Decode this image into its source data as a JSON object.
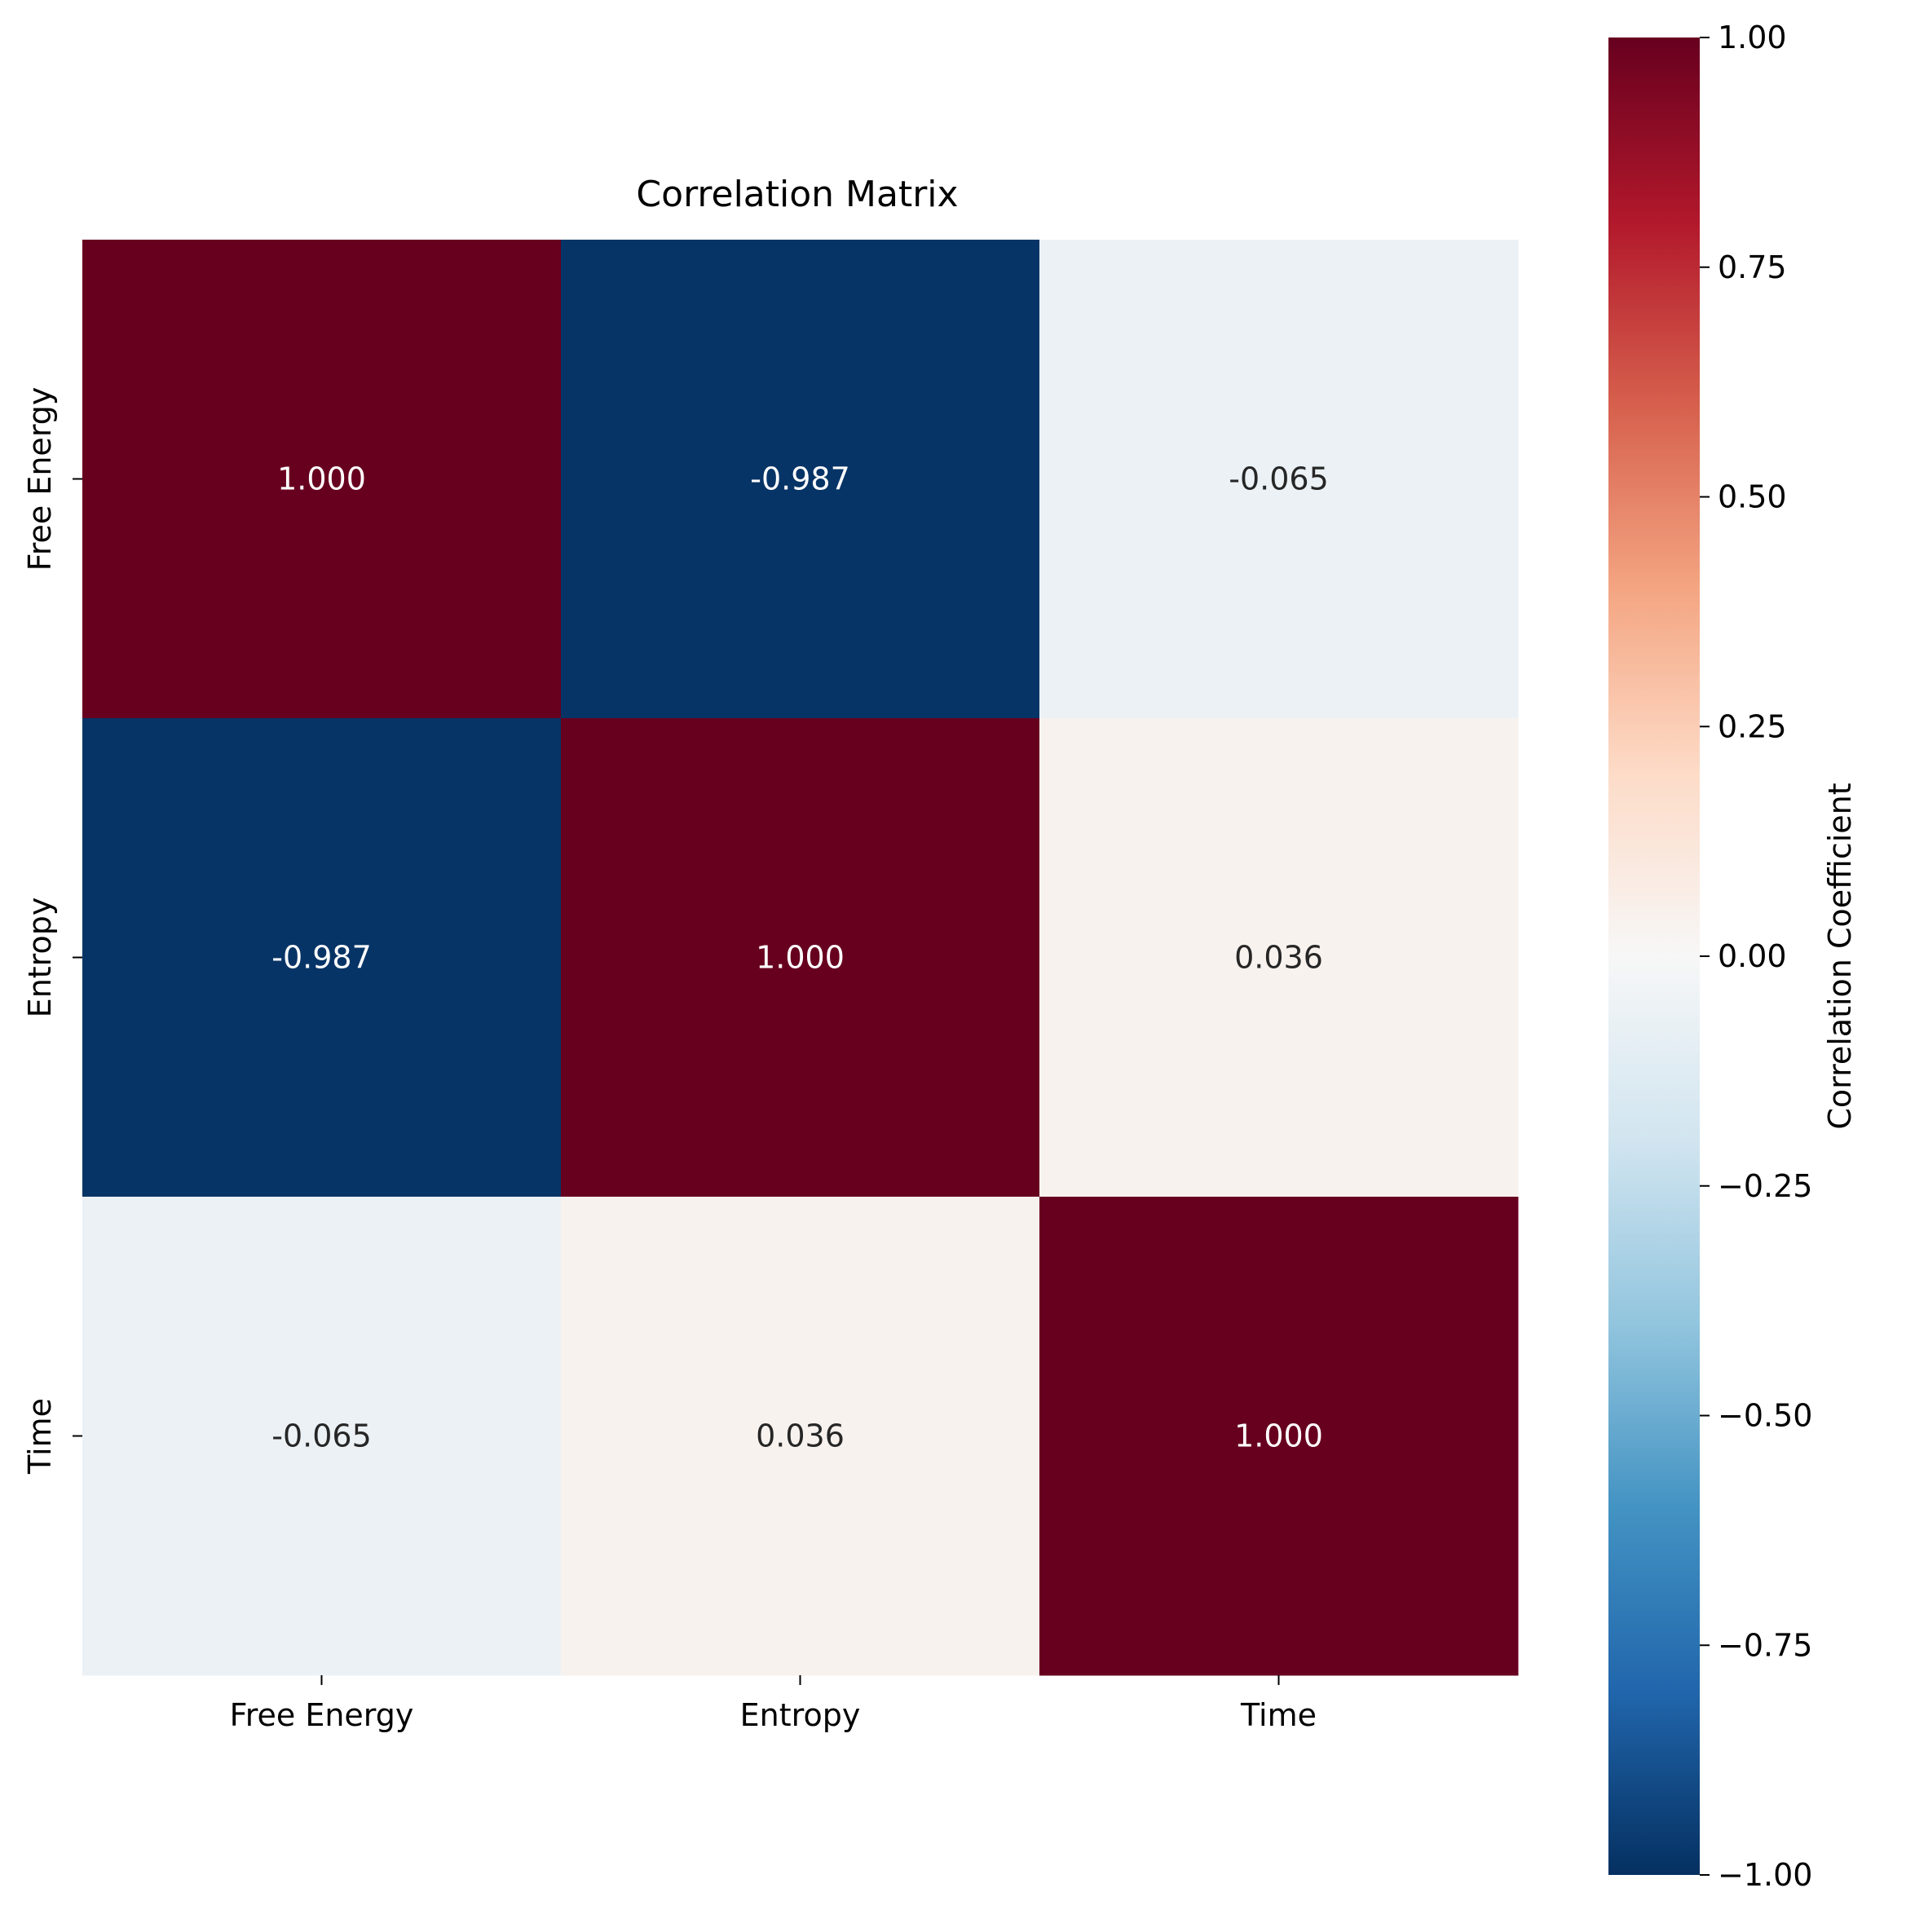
{
  "chart_data": {
    "type": "heatmap",
    "title": "Correlation Matrix",
    "rows": [
      "Free Energy",
      "Entropy",
      "Time"
    ],
    "columns": [
      "Free Energy",
      "Entropy",
      "Time"
    ],
    "values": [
      [
        1.0,
        -0.987,
        -0.065
      ],
      [
        -0.987,
        1.0,
        0.036
      ],
      [
        -0.065,
        0.036,
        1.0
      ]
    ],
    "cell_labels": [
      [
        "1.000",
        "-0.987",
        "-0.065"
      ],
      [
        "-0.987",
        "1.000",
        "0.036"
      ],
      [
        "-0.065",
        "0.036",
        "1.000"
      ]
    ],
    "colormap": "RdBu_r",
    "colorbar": {
      "label": "Correlation Coefficient",
      "range": [
        -1.0,
        1.0
      ],
      "ticks": [
        1.0,
        0.75,
        0.5,
        0.25,
        0.0,
        -0.25,
        -0.5,
        -0.75,
        -1.0
      ],
      "tick_labels": [
        "1.00",
        "0.75",
        "0.50",
        "0.25",
        "0.00",
        "−0.25",
        "−0.50",
        "−0.75",
        "−1.00"
      ],
      "position": "right"
    }
  },
  "colors": {
    "annot_light": "#ffffff",
    "annot_dark": "#262626",
    "colormap_stops": [
      "#053061",
      "#2166ac",
      "#4393c3",
      "#92c5de",
      "#d1e5f0",
      "#f7f7f7",
      "#fddbc7",
      "#f4a582",
      "#d6604d",
      "#b2182b",
      "#67001f"
    ]
  }
}
